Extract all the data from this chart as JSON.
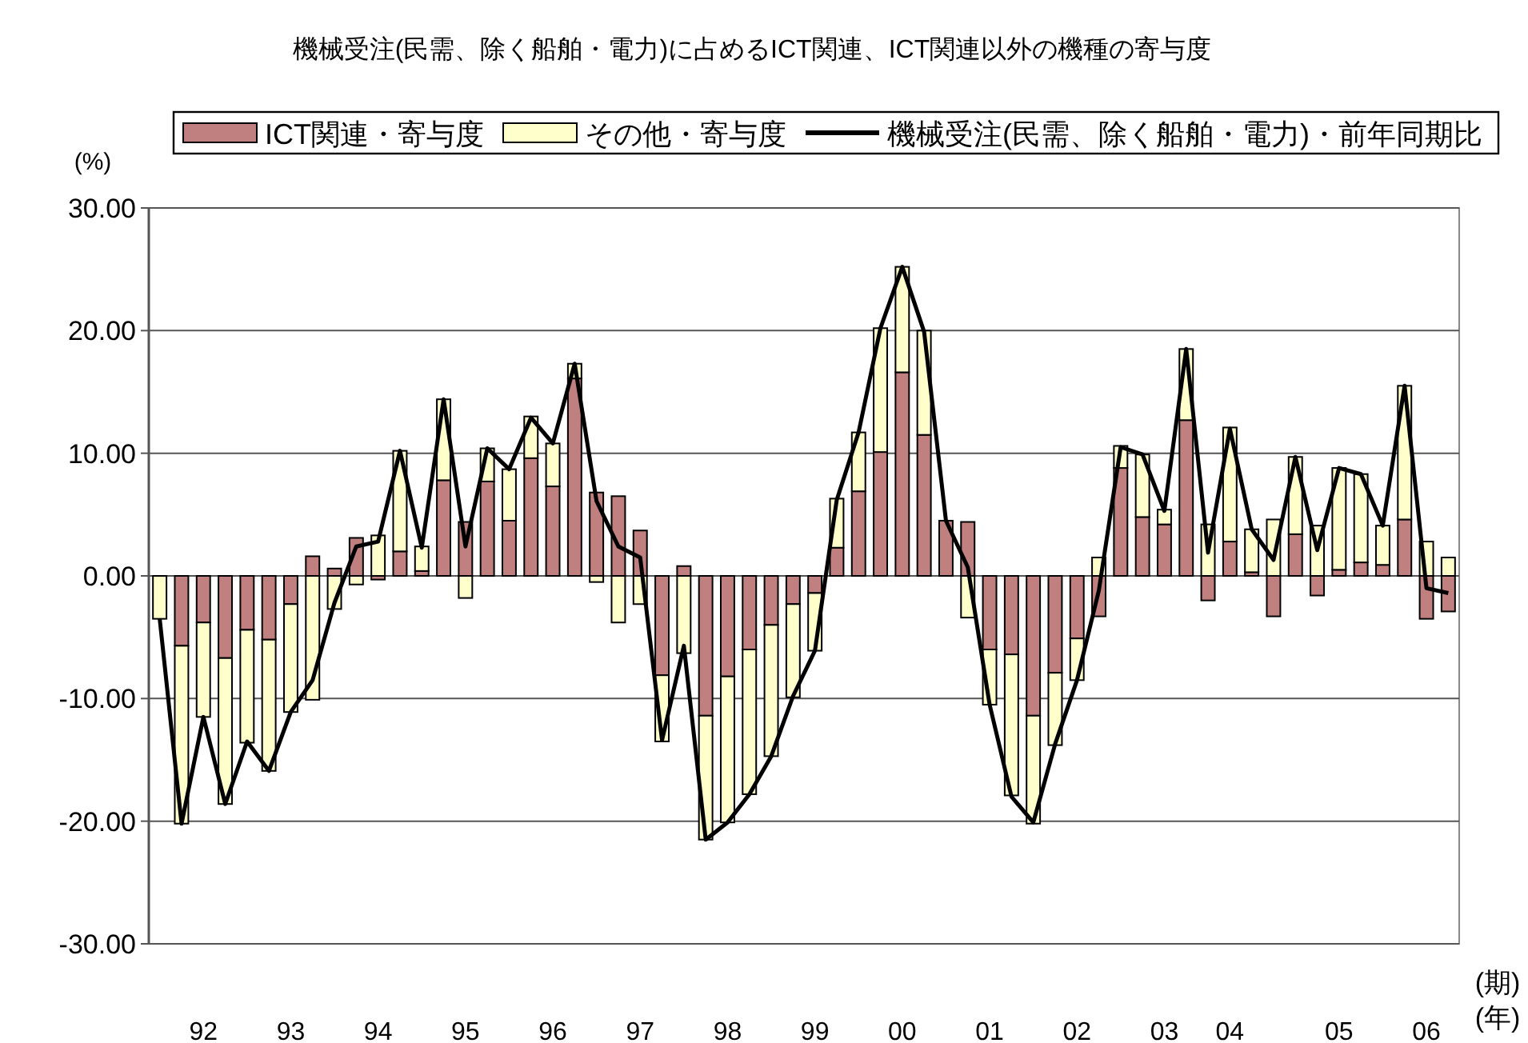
{
  "chart_data": {
    "type": "bar",
    "stacked": true,
    "title": "機械受注(民需、除く船舶・電力)に占めるICT関連、ICT関連以外の機種の寄与度",
    "ylabel": "(%)",
    "xlabel": "(期)",
    "annotations": [
      "(年)"
    ],
    "legend": "top",
    "grid": "y",
    "ylim": [
      -30,
      30
    ],
    "yticks": [
      {
        "value": -30,
        "label": "-30.00"
      },
      {
        "value": -20,
        "label": "-20.00"
      },
      {
        "value": -10,
        "label": "-10.00"
      },
      {
        "value": 0,
        "label": "0.00"
      },
      {
        "value": 10,
        "label": "10.00"
      },
      {
        "value": 20,
        "label": "20.00"
      },
      {
        "value": 30,
        "label": "30.00"
      }
    ],
    "categories": [
      null,
      null,
      "92",
      null,
      null,
      null,
      "93",
      null,
      null,
      null,
      "94",
      null,
      null,
      null,
      "95",
      null,
      null,
      null,
      "96",
      null,
      null,
      null,
      "97",
      null,
      null,
      null,
      "98",
      null,
      null,
      null,
      "99",
      null,
      null,
      null,
      "00",
      null,
      null,
      null,
      "01",
      null,
      null,
      null,
      "02",
      null,
      null,
      null,
      "03",
      null,
      null,
      "04",
      null,
      null,
      null,
      null,
      "05",
      null,
      null,
      null,
      "06",
      null
    ],
    "series": [
      {
        "name": "ICT関連・寄与度",
        "color": "#c08080",
        "values": [
          0,
          -5.7,
          -3.8,
          -6.7,
          -4.4,
          -5.2,
          -2.3,
          1.6,
          0.6,
          3.1,
          -0.3,
          2.0,
          0.4,
          7.8,
          4.4,
          7.7,
          4.5,
          9.6,
          7.3,
          16.1,
          6.8,
          6.5,
          3.7,
          -8.1,
          0.8,
          -11.4,
          -8.2,
          -6.0,
          -4.0,
          -2.3,
          -1.4,
          2.3,
          6.9,
          10.1,
          16.6,
          11.5,
          4.5,
          4.4,
          -6.0,
          -6.4,
          -11.4,
          -7.9,
          -5.1,
          -3.3,
          8.8,
          4.8,
          4.2,
          12.7,
          -2.0,
          2.8,
          0.3,
          -3.3,
          3.4,
          -1.6,
          0.5,
          1.1,
          0.9,
          4.6,
          -3.5,
          -2.9
        ]
      },
      {
        "name": "その他・寄与度",
        "color": "#ffffcc",
        "values": [
          -3.5,
          -14.5,
          -7.7,
          -11.9,
          -9.2,
          -10.7,
          -8.8,
          -10.1,
          -2.7,
          -0.7,
          3.3,
          8.2,
          2.0,
          6.6,
          -1.8,
          2.7,
          4.2,
          3.4,
          3.5,
          1.2,
          -0.5,
          -3.8,
          -2.3,
          -5.4,
          -6.3,
          -10.1,
          -11.9,
          -11.8,
          -10.7,
          -7.6,
          -4.7,
          4.0,
          4.8,
          10.1,
          8.6,
          8.5,
          0,
          -3.4,
          -4.5,
          -11.5,
          -8.8,
          -5.9,
          -3.4,
          1.5,
          1.8,
          5.1,
          1.2,
          5.8,
          4.2,
          9.3,
          3.5,
          4.6,
          6.3,
          4.1,
          8.3,
          7.2,
          3.2,
          10.9,
          2.8,
          1.5
        ]
      },
      {
        "name": "機械受注(民需、除く船舶・電力)・前年同期比",
        "type": "line",
        "color": "#000000",
        "values": [
          -3.5,
          -20.2,
          -11.5,
          -18.6,
          -13.5,
          -15.9,
          -11.1,
          -8.5,
          -2.2,
          2.4,
          2.8,
          10.2,
          2.3,
          14.4,
          2.4,
          10.4,
          8.7,
          12.9,
          10.8,
          17.3,
          6.1,
          2.4,
          1.5,
          -13.4,
          -5.7,
          -21.5,
          -20.1,
          -17.8,
          -14.7,
          -9.8,
          -6.1,
          6.2,
          11.7,
          20.2,
          25.2,
          19.9,
          4.5,
          0.7,
          -10.5,
          -18.0,
          -20.1,
          -13.7,
          -8.5,
          -1.2,
          10.5,
          9.9,
          5.3,
          18.5,
          1.9,
          12.0,
          3.8,
          1.3,
          9.7,
          2.1,
          8.8,
          8.3,
          4.1,
          15.5,
          -1.0,
          -1.4
        ]
      }
    ]
  }
}
